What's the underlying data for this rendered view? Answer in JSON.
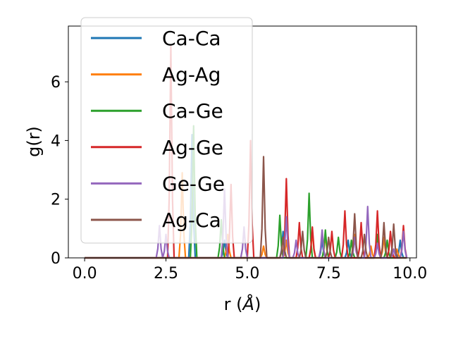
{
  "chart_data": {
    "type": "line",
    "title": "",
    "xlabel": "r (",
    "xlabel_unit": "Å",
    "xlabel_close": ")",
    "ylabel": "g(r)",
    "xlim": [
      -0.5,
      10.2
    ],
    "ylim": [
      0,
      7.9
    ],
    "xticks": [
      0.0,
      2.5,
      5.0,
      7.5,
      10.0
    ],
    "xtick_labels": [
      "0.0",
      "2.5",
      "5.0",
      "7.5",
      "10.0"
    ],
    "yticks": [
      0,
      2,
      4,
      6
    ],
    "ytick_labels": [
      "0",
      "2",
      "4",
      "6"
    ],
    "grid": false,
    "legend_position": "top-left",
    "series": [
      {
        "name": "Ca-Ca",
        "color": "#1f77b4",
        "peaks": [
          [
            3.3,
            4.2
          ],
          [
            4.3,
            0.6
          ],
          [
            6.1,
            0.9
          ],
          [
            7.3,
            0.6
          ],
          [
            8.1,
            0.6
          ],
          [
            9.0,
            0.6
          ],
          [
            9.7,
            0.6
          ]
        ]
      },
      {
        "name": "Ag-Ag",
        "color": "#ff7f0e",
        "peaks": [
          [
            3.0,
            2.9
          ],
          [
            4.4,
            0.8
          ],
          [
            5.5,
            0.4
          ],
          [
            6.2,
            0.6
          ],
          [
            7.0,
            0.9
          ],
          [
            7.4,
            0.8
          ],
          [
            8.3,
            0.8
          ],
          [
            8.8,
            0.4
          ],
          [
            9.2,
            0.7
          ],
          [
            9.6,
            0.3
          ]
        ]
      },
      {
        "name": "Ca-Ge",
        "color": "#2ca02c",
        "peaks": [
          [
            3.35,
            4.5
          ],
          [
            4.2,
            1.3
          ],
          [
            6.0,
            1.45
          ],
          [
            6.9,
            2.2
          ],
          [
            7.4,
            0.95
          ],
          [
            7.8,
            0.7
          ],
          [
            8.2,
            0.6
          ],
          [
            9.0,
            0.8
          ],
          [
            9.3,
            0.6
          ]
        ]
      },
      {
        "name": "Ag-Ge",
        "color": "#d62728",
        "peaks": [
          [
            2.65,
            7.2
          ],
          [
            4.5,
            2.5
          ],
          [
            5.1,
            4.0
          ],
          [
            6.2,
            2.7
          ],
          [
            6.6,
            1.2
          ],
          [
            7.0,
            1.05
          ],
          [
            7.6,
            0.9
          ],
          [
            8.0,
            1.6
          ],
          [
            8.5,
            1.2
          ],
          [
            9.0,
            1.6
          ],
          [
            9.4,
            0.9
          ],
          [
            9.8,
            1.1
          ]
        ]
      },
      {
        "name": "Ge-Ge",
        "color": "#9467bd",
        "peaks": [
          [
            2.3,
            1.1
          ],
          [
            2.5,
            0.8
          ],
          [
            4.3,
            2.35
          ],
          [
            4.9,
            1.05
          ],
          [
            6.2,
            1.4
          ],
          [
            6.5,
            0.6
          ],
          [
            7.3,
            0.95
          ],
          [
            8.3,
            0.7
          ],
          [
            8.7,
            1.75
          ],
          [
            9.0,
            0.5
          ],
          [
            9.5,
            0.3
          ],
          [
            9.8,
            0.9
          ]
        ]
      },
      {
        "name": "Ag-Ca",
        "color": "#8c564b",
        "peaks": [
          [
            5.5,
            3.45
          ],
          [
            6.1,
            0.7
          ],
          [
            6.7,
            0.9
          ],
          [
            7.5,
            0.7
          ],
          [
            8.3,
            1.5
          ],
          [
            8.6,
            0.8
          ],
          [
            9.2,
            1.2
          ],
          [
            9.5,
            1.15
          ]
        ]
      }
    ]
  }
}
